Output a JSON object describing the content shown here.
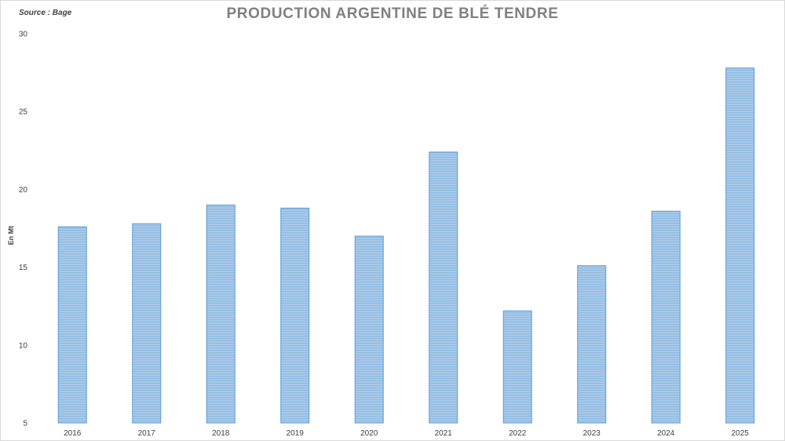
{
  "chart_data": {
    "type": "bar",
    "title": "PRODUCTION ARGENTINE DE BLÉ TENDRE",
    "source": "Source : Bage",
    "ylabel": "En Mt",
    "xlabel": "",
    "categories": [
      "2016",
      "2017",
      "2018",
      "2019",
      "2020",
      "2021",
      "2022",
      "2023",
      "2024",
      "2025"
    ],
    "values": [
      17.6,
      17.8,
      19.0,
      18.8,
      17.0,
      22.4,
      12.2,
      15.1,
      18.6,
      27.8
    ],
    "ylim": [
      5,
      30
    ],
    "yticks": [
      "5",
      "10",
      "15",
      "20",
      "25",
      "30"
    ],
    "bar_color": "#9dc3e6",
    "bar_edge_color": "#5b9bd5",
    "grid": false,
    "legend": "none"
  }
}
